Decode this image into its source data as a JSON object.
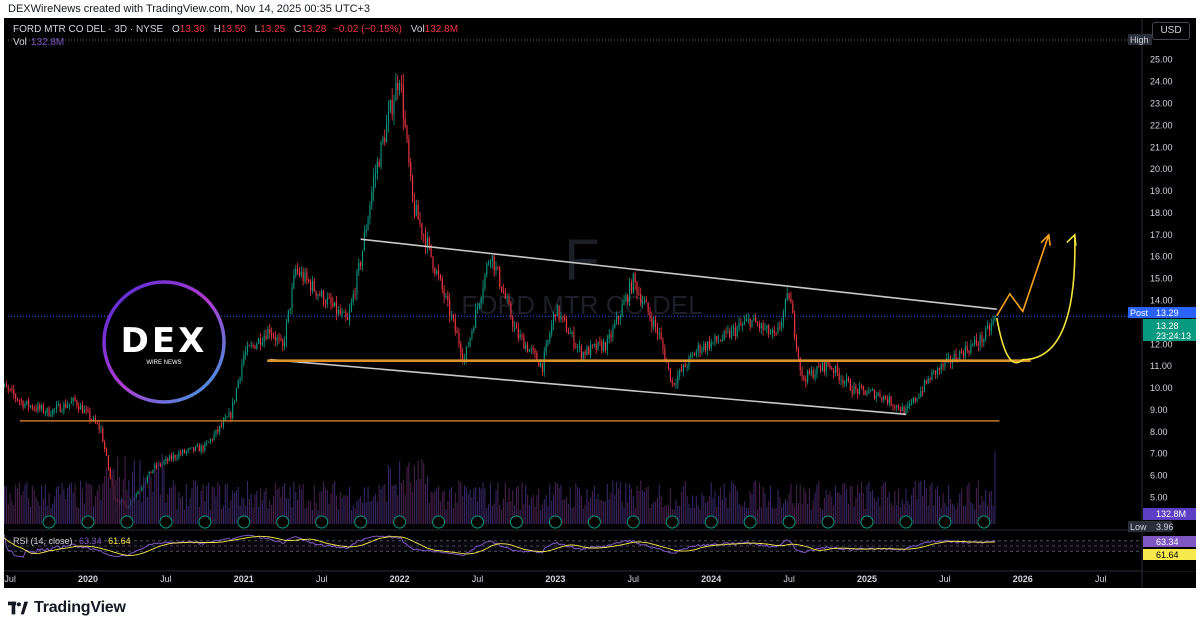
{
  "header": {
    "attribution": "DEXWireNews created with TradingView.com, Nov 14, 2025 00:35 UTC+3"
  },
  "legend": {
    "symbol": "FORD MTR CO DEL · 3D · NYSE",
    "open_label": "O",
    "open": "13.30",
    "high_label": "H",
    "high": "13.50",
    "low_label": "L",
    "low": "13.25",
    "close_label": "C",
    "close": "13.28",
    "change": "−0.02 (−0.15%)",
    "vol_label": "Vol",
    "vol": "132.8M",
    "vol_row_label": "Vol",
    "vol_row_value": "132.8M"
  },
  "currency_button": "USD",
  "watermark": {
    "letter": "F",
    "name": "FORD MTR CO DEL"
  },
  "logo": {
    "text": "DEX",
    "subtext": "WIRE NEWS"
  },
  "footer": {
    "brand": "TradingView"
  },
  "rsi": {
    "label": "RSI (14, close)",
    "v1": "63.34",
    "v2": "61.64"
  },
  "price_axis": {
    "ticks": [
      "25.00",
      "24.00",
      "23.00",
      "22.00",
      "21.00",
      "20.00",
      "19.00",
      "18.00",
      "17.00",
      "16.00",
      "15.00",
      "14.00",
      "13.00",
      "12.00",
      "11.00",
      "10.00",
      "9.00",
      "8.00",
      "7.00",
      "6.00",
      "5.00"
    ],
    "high_tag": "High",
    "low_tag": "Low",
    "low_value": "3.96",
    "post_tag": "Post",
    "post_value": "13.29",
    "last_value": "13.28",
    "countdown": "23:24:13",
    "vol_tag": "132.8M",
    "rsi_tag1": "63.34",
    "rsi_tag2": "61.64"
  },
  "chart_data": {
    "type": "candlestick",
    "title": "FORD MTR CO DEL · 3D · NYSE",
    "x_ticks": [
      "Jul",
      "2020",
      "Jul",
      "2021",
      "Jul",
      "2022",
      "Jul",
      "2023",
      "Jul",
      "2024",
      "Jul",
      "2025",
      "Jul",
      "2026",
      "Jul"
    ],
    "ylim": [
      4.2,
      25.9
    ],
    "price_path": [
      [
        "2019-06",
        10.3
      ],
      [
        "2019-08",
        9.3
      ],
      [
        "2019-10",
        8.9
      ],
      [
        "2019-12",
        9.4
      ],
      [
        "2020-02",
        8.1
      ],
      [
        "2020-03",
        5.0
      ],
      [
        "2020-04",
        4.6
      ],
      [
        "2020-05",
        5.4
      ],
      [
        "2020-06",
        6.3
      ],
      [
        "2020-08",
        7.0
      ],
      [
        "2020-10",
        7.3
      ],
      [
        "2020-12",
        8.8
      ],
      [
        "2021-01",
        11.5
      ],
      [
        "2021-03",
        12.7
      ],
      [
        "2021-04",
        11.8
      ],
      [
        "2021-05",
        15.4
      ],
      [
        "2021-07",
        14.2
      ],
      [
        "2021-09",
        13.0
      ],
      [
        "2021-10",
        15.8
      ],
      [
        "2021-11",
        19.5
      ],
      [
        "2022-01",
        24.4
      ],
      [
        "2022-02",
        18.4
      ],
      [
        "2022-03",
        16.8
      ],
      [
        "2022-05",
        13.2
      ],
      [
        "2022-06",
        11.3
      ],
      [
        "2022-08",
        16.2
      ],
      [
        "2022-10",
        12.5
      ],
      [
        "2022-12",
        11.0
      ],
      [
        "2023-01",
        13.6
      ],
      [
        "2023-03",
        11.6
      ],
      [
        "2023-05",
        12.0
      ],
      [
        "2023-07",
        14.9
      ],
      [
        "2023-09",
        12.4
      ],
      [
        "2023-10",
        10.2
      ],
      [
        "2023-12",
        11.8
      ],
      [
        "2024-02",
        12.3
      ],
      [
        "2024-04",
        13.1
      ],
      [
        "2024-06",
        12.3
      ],
      [
        "2024-07",
        14.3
      ],
      [
        "2024-08",
        10.4
      ],
      [
        "2024-10",
        11.1
      ],
      [
        "2024-12",
        9.9
      ],
      [
        "2025-02",
        9.7
      ],
      [
        "2025-04",
        8.9
      ],
      [
        "2025-06",
        10.6
      ],
      [
        "2025-08",
        11.5
      ],
      [
        "2025-10",
        12.3
      ],
      [
        "2025-11",
        13.28
      ]
    ],
    "annotations": {
      "resistance_line": [
        [
          "2021-10",
          16.8
        ],
        [
          "2025-11",
          13.6
        ]
      ],
      "support_channel_line": [
        [
          "2021-03",
          11.3
        ],
        [
          "2025-04",
          8.8
        ]
      ],
      "support_level_1": 11.25,
      "support_level_2": 8.5,
      "bullish_path_orange": [
        [
          "2025-11",
          13.3
        ],
        [
          "2025-12",
          14.3
        ],
        [
          "2026-01",
          13.5
        ],
        [
          "2026-03",
          17.0
        ]
      ],
      "bullish_path_yellow": [
        [
          "2025-11",
          13.2
        ],
        [
          "2026-01",
          11.3
        ],
        [
          "2026-05",
          17.0
        ]
      ]
    },
    "volume_last": "132.8M",
    "rsi": {
      "length": 14,
      "source": "close",
      "value": 63.34,
      "signal": 61.64,
      "upper": 70,
      "lower": 30
    }
  }
}
